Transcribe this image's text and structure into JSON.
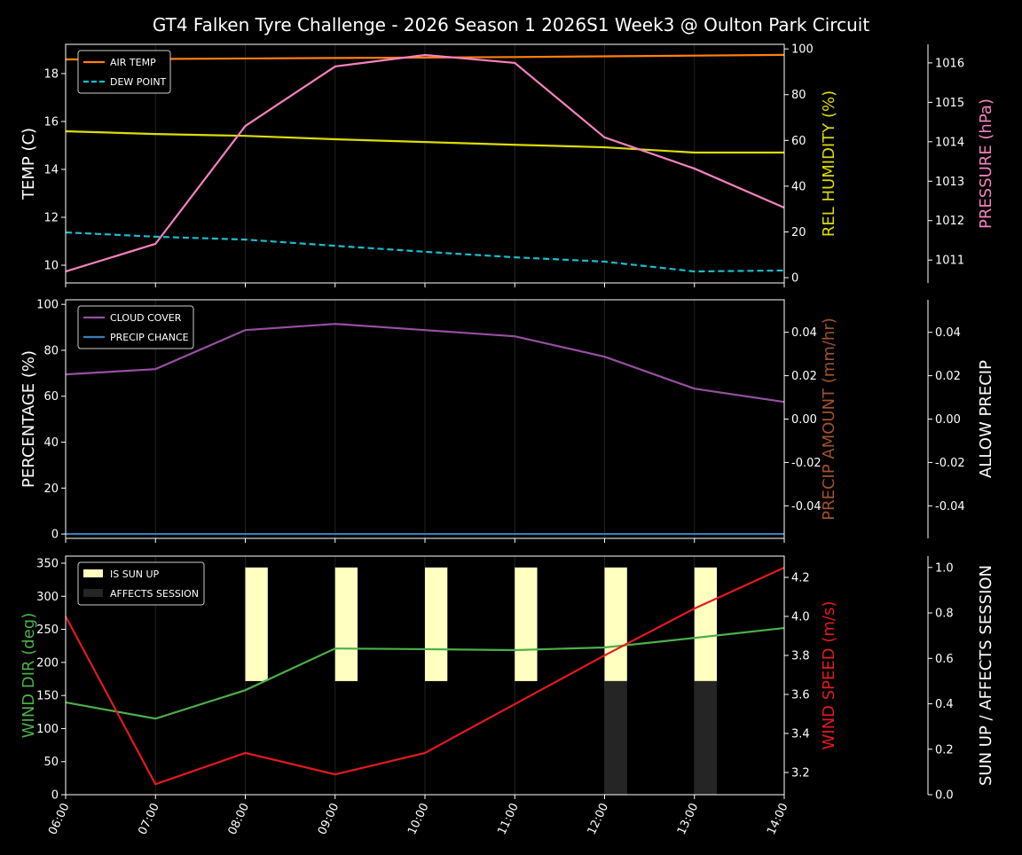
{
  "title": "GT4 Falken Tyre Challenge - 2026 Season 1 2026S1 Week3 @ Oulton Park Circuit",
  "chart_data": [
    {
      "type": "line",
      "x": [
        "06:00",
        "07:00",
        "08:00",
        "09:00",
        "10:00",
        "11:00",
        "12:00",
        "13:00",
        "14:00"
      ],
      "ylabel": "TEMP (C)",
      "ylim": [
        9.26,
        19.22
      ],
      "yticks": [
        10,
        12,
        14,
        16,
        18
      ],
      "y2label": "REL HUMIDITY (%)",
      "y2lim": [
        -2.3,
        102
      ],
      "y2ticks": [
        0,
        20,
        40,
        60,
        80,
        100
      ],
      "y3label": "PRESSURE (hPa)",
      "y3lim": [
        1010.42,
        1016.47
      ],
      "y3ticks": [
        1011,
        1012,
        1013,
        1014,
        1015,
        1016
      ],
      "legend": "top-left",
      "series": [
        {
          "name": "AIR TEMP",
          "axis": "y",
          "color": "#ff7f0e",
          "dash": false,
          "values": [
            18.59,
            18.61,
            18.63,
            18.65,
            18.67,
            18.69,
            18.72,
            18.75,
            18.78
          ]
        },
        {
          "name": "DEW POINT",
          "axis": "y",
          "color": "#17becf",
          "dash": true,
          "values": [
            11.37,
            11.19,
            11.07,
            10.81,
            10.56,
            10.33,
            10.15,
            9.74,
            9.78
          ]
        },
        {
          "axis": "y2",
          "color": "#dddd00",
          "dash": false,
          "values": [
            64.0,
            62.8,
            62.0,
            60.5,
            59.3,
            58.1,
            57.0,
            54.7,
            54.7
          ]
        },
        {
          "axis": "y3",
          "color": "#f781bf",
          "dash": false,
          "values": [
            1010.71,
            1011.41,
            1014.4,
            1015.91,
            1016.2,
            1016.0,
            1014.11,
            1013.32,
            1012.33
          ]
        }
      ]
    },
    {
      "type": "line",
      "x": [
        "06:00",
        "07:00",
        "08:00",
        "09:00",
        "10:00",
        "11:00",
        "12:00",
        "13:00",
        "14:00"
      ],
      "ylabel": "PERCENTAGE (%)",
      "ylim": [
        -1.9,
        102
      ],
      "yticks": [
        0,
        20,
        40,
        60,
        80,
        100
      ],
      "y2label": "PRECIP AMOUNT (mm/hr)",
      "y2lim": [
        -0.055,
        0.055
      ],
      "y2ticks": [
        -0.04,
        -0.02,
        0.0,
        0.02,
        0.04
      ],
      "y3label": "ALLOW PRECIP",
      "y3lim": [
        -0.055,
        0.055
      ],
      "y3ticks": [
        -0.04,
        -0.02,
        0.0,
        0.02,
        0.04
      ],
      "legend": "top-left",
      "series": [
        {
          "name": "CLOUD COVER",
          "axis": "y",
          "color": "#984ea3",
          "dash": false,
          "values": [
            69.5,
            71.8,
            88.8,
            91.5,
            88.8,
            86.1,
            77.2,
            63.3,
            57.5
          ]
        },
        {
          "name": "PRECIP CHANCE",
          "axis": "y",
          "color": "#377eb8",
          "dash": false,
          "values": [
            0,
            0,
            0,
            0,
            0,
            0,
            0,
            0,
            0
          ]
        }
      ]
    },
    {
      "type": "line",
      "x": [
        "06:00",
        "07:00",
        "08:00",
        "09:00",
        "10:00",
        "11:00",
        "12:00",
        "13:00",
        "14:00"
      ],
      "ylabel": "WIND DIR (deg)",
      "ylim": [
        0,
        360.7
      ],
      "yticks": [
        0,
        50,
        100,
        150,
        200,
        250,
        300,
        350
      ],
      "y2label": "WIND SPEED (m/s)",
      "y2lim": [
        3.086,
        4.309
      ],
      "y2ticks": [
        3.2,
        3.4,
        3.6,
        3.8,
        4.0,
        4.2
      ],
      "y3label": "SUN UP / AFFECTS SESSION",
      "y3lim": [
        0,
        1.05
      ],
      "y3ticks": [
        0.0,
        0.2,
        0.4,
        0.6,
        0.8,
        1.0
      ],
      "legend": "top-left",
      "series": [
        {
          "axis": "y",
          "color": "#4daf4a",
          "dash": false,
          "values": [
            139.5,
            115,
            158,
            221,
            220,
            218.6,
            222.6,
            237,
            252
          ]
        },
        {
          "axis": "y2",
          "color": "#e41a1c",
          "dash": false,
          "values": [
            4.0,
            3.14,
            3.3,
            3.19,
            3.3,
            3.55,
            3.8,
            4.04,
            4.25
          ]
        }
      ],
      "bars": [
        {
          "name": "IS SUN UP",
          "color": "#ffffc0",
          "base": 0.5,
          "values": [
            0,
            0,
            1,
            1,
            1,
            1,
            1,
            1,
            0
          ]
        },
        {
          "name": "AFFECTS SESSION",
          "color": "#252525",
          "base": 0,
          "values": [
            0,
            0,
            0,
            0,
            0,
            0,
            1,
            1,
            0
          ]
        }
      ]
    }
  ]
}
